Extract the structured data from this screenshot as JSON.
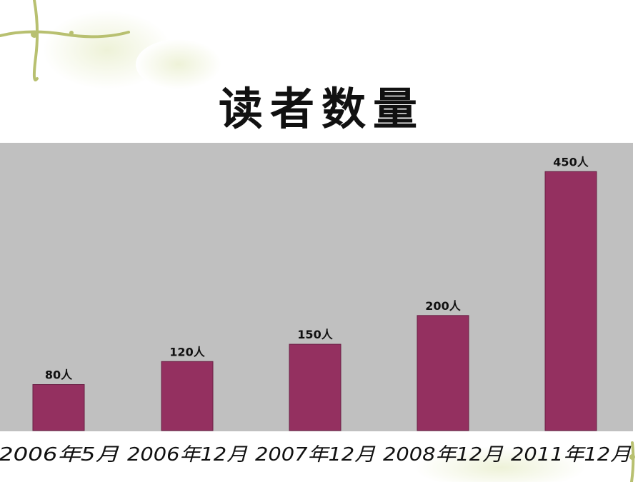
{
  "chart_data": {
    "type": "bar",
    "title": "读者数量",
    "categories": [
      "2006年5月",
      "2006年12月",
      "2007年12月",
      "2008年12月",
      "2011年12月"
    ],
    "values": [
      80,
      120,
      150,
      200,
      450
    ],
    "value_labels": [
      "80人",
      "120人",
      "150人",
      "200人",
      "450人"
    ],
    "ylim": [
      0,
      500
    ],
    "bar_color": "#943060",
    "plot_background": "#c0c0c0",
    "grid": false,
    "legend": "none"
  }
}
